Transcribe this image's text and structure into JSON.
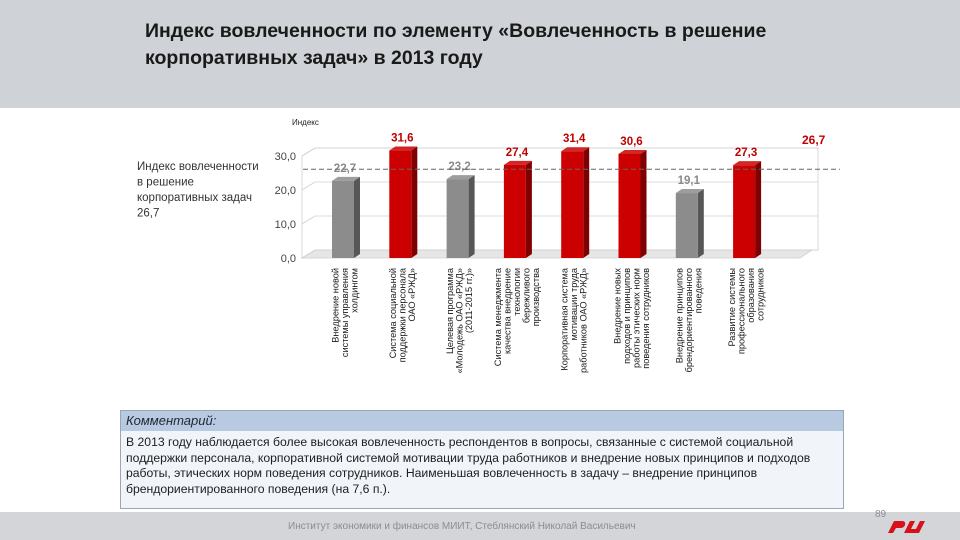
{
  "slide": {
    "title": "Индекс вовлеченности по элементу «Вовлеченность в решение корпоративных задач» в 2013 году",
    "comment_title": "Комментарий:",
    "comment_text": "В 2013 году наблюдается более высокая вовлеченность респондентов в вопросы, связанные с системой социальной поддержки персонала, корпоративной системой мотивации труда работников и внедрение новых принципов и подходов работы, этических норм поведения сотрудников. Наименьшая вовлеченность в задачу – внедрение принципов брендориентированного поведения  (на 7,6 п.).",
    "footer": "Институт экономики и финансов МИИТ, Стеблянский Николай Васильевич",
    "page_number": "89"
  },
  "chart_data": {
    "type": "bar",
    "ylabel": "Индекс",
    "ylim": [
      0,
      30
    ],
    "yticks": [
      "0,0",
      "10,0",
      "20,0",
      "30,0"
    ],
    "categories": [
      "Внедрение новой системы управления холдингом",
      "Система социальной поддержки персонала ОАО «РЖД»",
      "Целевая программа «Молодежь ОАО «РЖД» (2011-2015 гг.)»",
      "Система менеджмента качества внедрение технологии бережливого производства",
      "Корпоративная система мотивации труда работников ОАО «РЖД»",
      "Внедрение новых подходов и принципов работы этических норм поведения сотрудников",
      "Внедрение принципов брендориентированного поведения",
      "Развитие системы профессионального образования сотрудников"
    ],
    "values": [
      22.7,
      31.6,
      23.2,
      27.4,
      31.4,
      30.6,
      19.1,
      27.3
    ],
    "value_labels": [
      "22,7",
      "31,6",
      "23,2",
      "27,4",
      "31,4",
      "30,6",
      "19,1",
      "27,3"
    ],
    "bar_colors": [
      "#8c8c8c",
      "#cc0000",
      "#8c8c8c",
      "#cc0000",
      "#cc0000",
      "#cc0000",
      "#8c8c8c",
      "#cc0000"
    ],
    "label_colors": [
      "#8a8a8a",
      "#c00000",
      "#8a8a8a",
      "#c00000",
      "#c00000",
      "#c00000",
      "#8a8a8a",
      "#c00000"
    ],
    "reference": {
      "value": 26.7,
      "label": "26,7",
      "legend": "Индекс вовлеченности в решение корпоративных задач 26,7"
    }
  }
}
